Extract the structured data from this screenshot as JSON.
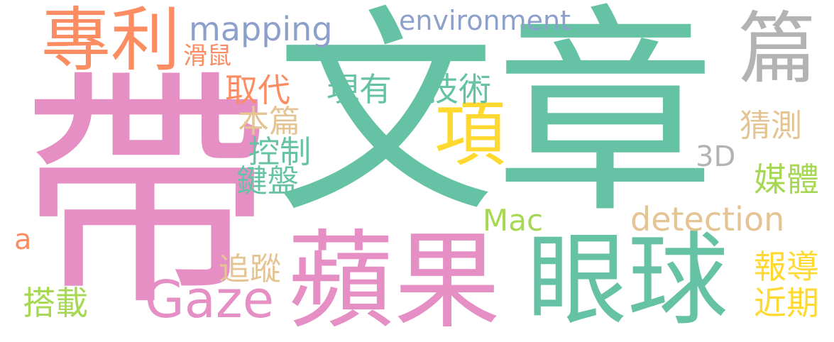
{
  "colors": {
    "pink": "#e58fc4",
    "green": "#66c2a5",
    "orange": "#fc8d62",
    "blue": "#8da0cb",
    "yellow": "#ffd92f",
    "lime": "#a6d854",
    "tan": "#e5c494",
    "gray": "#b3b3b3"
  },
  "words": [
    {
      "text": "帶",
      "color": "pink"
    },
    {
      "text": "文章",
      "color": "green"
    },
    {
      "text": "蘋果",
      "color": "pink"
    },
    {
      "text": "眼球",
      "color": "green"
    },
    {
      "text": "專利",
      "color": "orange"
    },
    {
      "text": "篇",
      "color": "gray"
    },
    {
      "text": "項",
      "color": "yellow"
    },
    {
      "text": "Gaze",
      "color": "pink"
    },
    {
      "text": "mapping",
      "color": "blue"
    },
    {
      "text": "environment",
      "color": "blue"
    },
    {
      "text": "detection",
      "color": "tan"
    },
    {
      "text": "Mac",
      "color": "lime"
    },
    {
      "text": "3D",
      "color": "gray"
    },
    {
      "text": "滑鼠",
      "color": "orange"
    },
    {
      "text": "取代",
      "color": "orange"
    },
    {
      "text": "現有",
      "color": "green"
    },
    {
      "text": "技術",
      "color": "green"
    },
    {
      "text": "本篇",
      "color": "tan"
    },
    {
      "text": "控制",
      "color": "green"
    },
    {
      "text": "鍵盤",
      "color": "green"
    },
    {
      "text": "猜測",
      "color": "tan"
    },
    {
      "text": "媒體",
      "color": "lime"
    },
    {
      "text": "追蹤",
      "color": "tan"
    },
    {
      "text": "搭載",
      "color": "lime"
    },
    {
      "text": "報導",
      "color": "yellow"
    },
    {
      "text": "近期",
      "color": "yellow"
    },
    {
      "text": "a",
      "color": "orange"
    }
  ]
}
